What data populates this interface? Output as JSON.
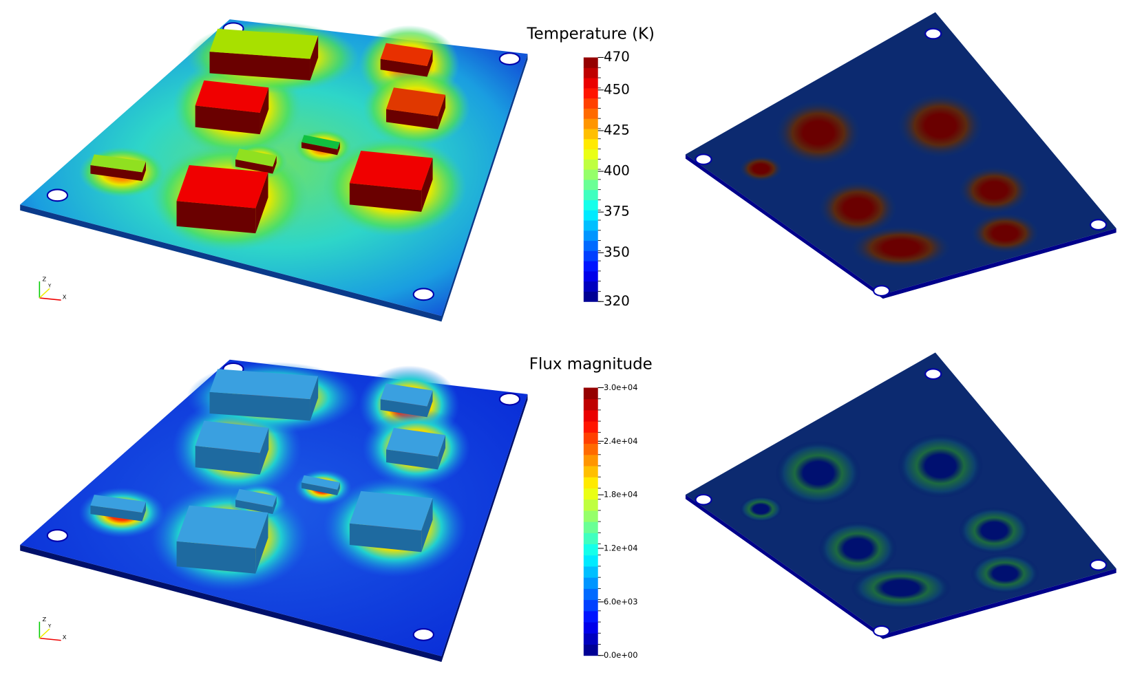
{
  "panels": [
    {
      "colorbar": {
        "title": "Temperature (K)",
        "range": [
          320,
          470
        ],
        "ticks": [
          320,
          350,
          375,
          400,
          425,
          450,
          470
        ]
      },
      "axes": {
        "z": "Z",
        "y": "Y",
        "x": "X"
      }
    },
    {
      "colorbar": {
        "title": "Flux magnitude",
        "range": [
          0,
          30000
        ],
        "ticks": [
          {
            "value": 0,
            "label": "0.0e+00"
          },
          {
            "value": 6000,
            "label": "6.0e+03"
          },
          {
            "value": 12000,
            "label": "1.2e+04"
          },
          {
            "value": 18000,
            "label": "1.8e+04"
          },
          {
            "value": 24000,
            "label": "2.4e+04"
          },
          {
            "value": 30000,
            "label": "3.0e+04"
          }
        ]
      },
      "axes": {
        "z": "Z",
        "y": "Y",
        "x": "X"
      }
    }
  ]
}
